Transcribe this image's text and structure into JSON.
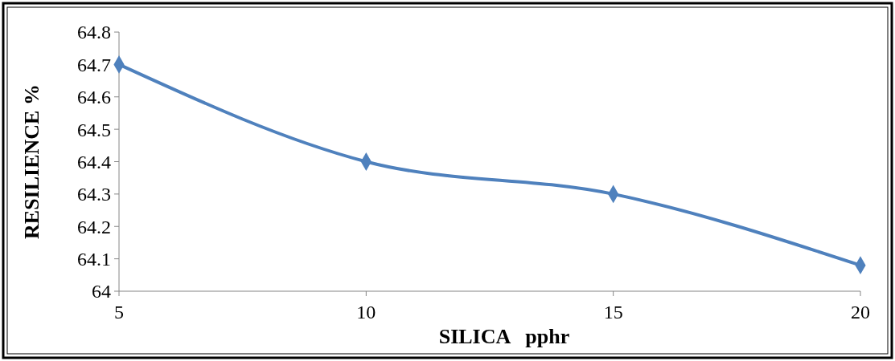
{
  "chart_data": {
    "type": "line",
    "xlabel": "SILICA   pphr",
    "ylabel": "RESILIENCE %",
    "x": [
      5,
      10,
      15,
      20
    ],
    "series": [
      {
        "color": "#4f81bd",
        "values": [
          64.7,
          64.4,
          64.3,
          64.08
        ]
      }
    ],
    "xlim": [
      5,
      20
    ],
    "xticks": [
      5,
      10,
      15,
      20
    ],
    "ylim": [
      64,
      64.8
    ],
    "yticks": [
      {
        "value": 64,
        "label": "64"
      },
      64.1,
      64.2,
      64.3,
      64.4,
      64.5,
      64.6,
      64.7,
      64.8
    ],
    "marker": "diamond",
    "line_style": "solid"
  }
}
